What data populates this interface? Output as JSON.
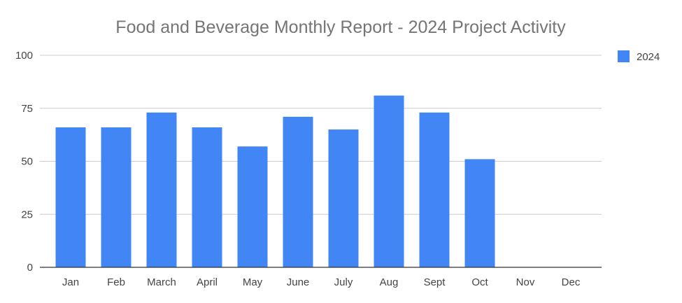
{
  "chart_data": {
    "type": "bar",
    "title": "Food and Beverage Monthly Report - 2024 Project Activity",
    "xlabel": "",
    "ylabel": "",
    "categories": [
      "Jan",
      "Feb",
      "March",
      "April",
      "May",
      "June",
      "July",
      "Aug",
      "Sept",
      "Oct",
      "Nov",
      "Dec"
    ],
    "series": [
      {
        "name": "2024",
        "color": "#4285f4",
        "values": [
          66,
          66,
          73,
          66,
          57,
          71,
          65,
          81,
          73,
          51,
          null,
          null
        ]
      }
    ],
    "ylim": [
      0,
      100
    ],
    "yticks": [
      0,
      25,
      50,
      75,
      100
    ],
    "grid": true,
    "legend_position": "top-right"
  }
}
